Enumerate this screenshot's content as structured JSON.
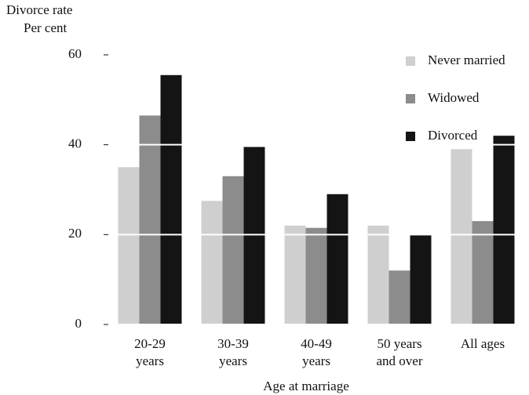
{
  "chart_data": {
    "type": "bar",
    "y_label": [
      "Divorce rate",
      "Per cent"
    ],
    "x_label": "Age at marriage",
    "categories": [
      [
        "20-29",
        "years"
      ],
      [
        "30-39",
        "years"
      ],
      [
        "40-49",
        "years"
      ],
      [
        "50 years",
        "and over"
      ],
      [
        "All ages"
      ]
    ],
    "series": [
      {
        "name": "Never married",
        "color": "#cfcfcf",
        "values": [
          35,
          27.5,
          22,
          22,
          39
        ]
      },
      {
        "name": "Widowed",
        "color": "#8c8c8c",
        "values": [
          46.5,
          33,
          21.5,
          12,
          23
        ]
      },
      {
        "name": "Divorced",
        "color": "#141414",
        "values": [
          55.5,
          39.5,
          29,
          20,
          42
        ]
      }
    ],
    "ylim": [
      0,
      60
    ],
    "yticks": [
      0,
      20,
      40,
      60
    ],
    "grid": true,
    "legend": "top-right"
  }
}
